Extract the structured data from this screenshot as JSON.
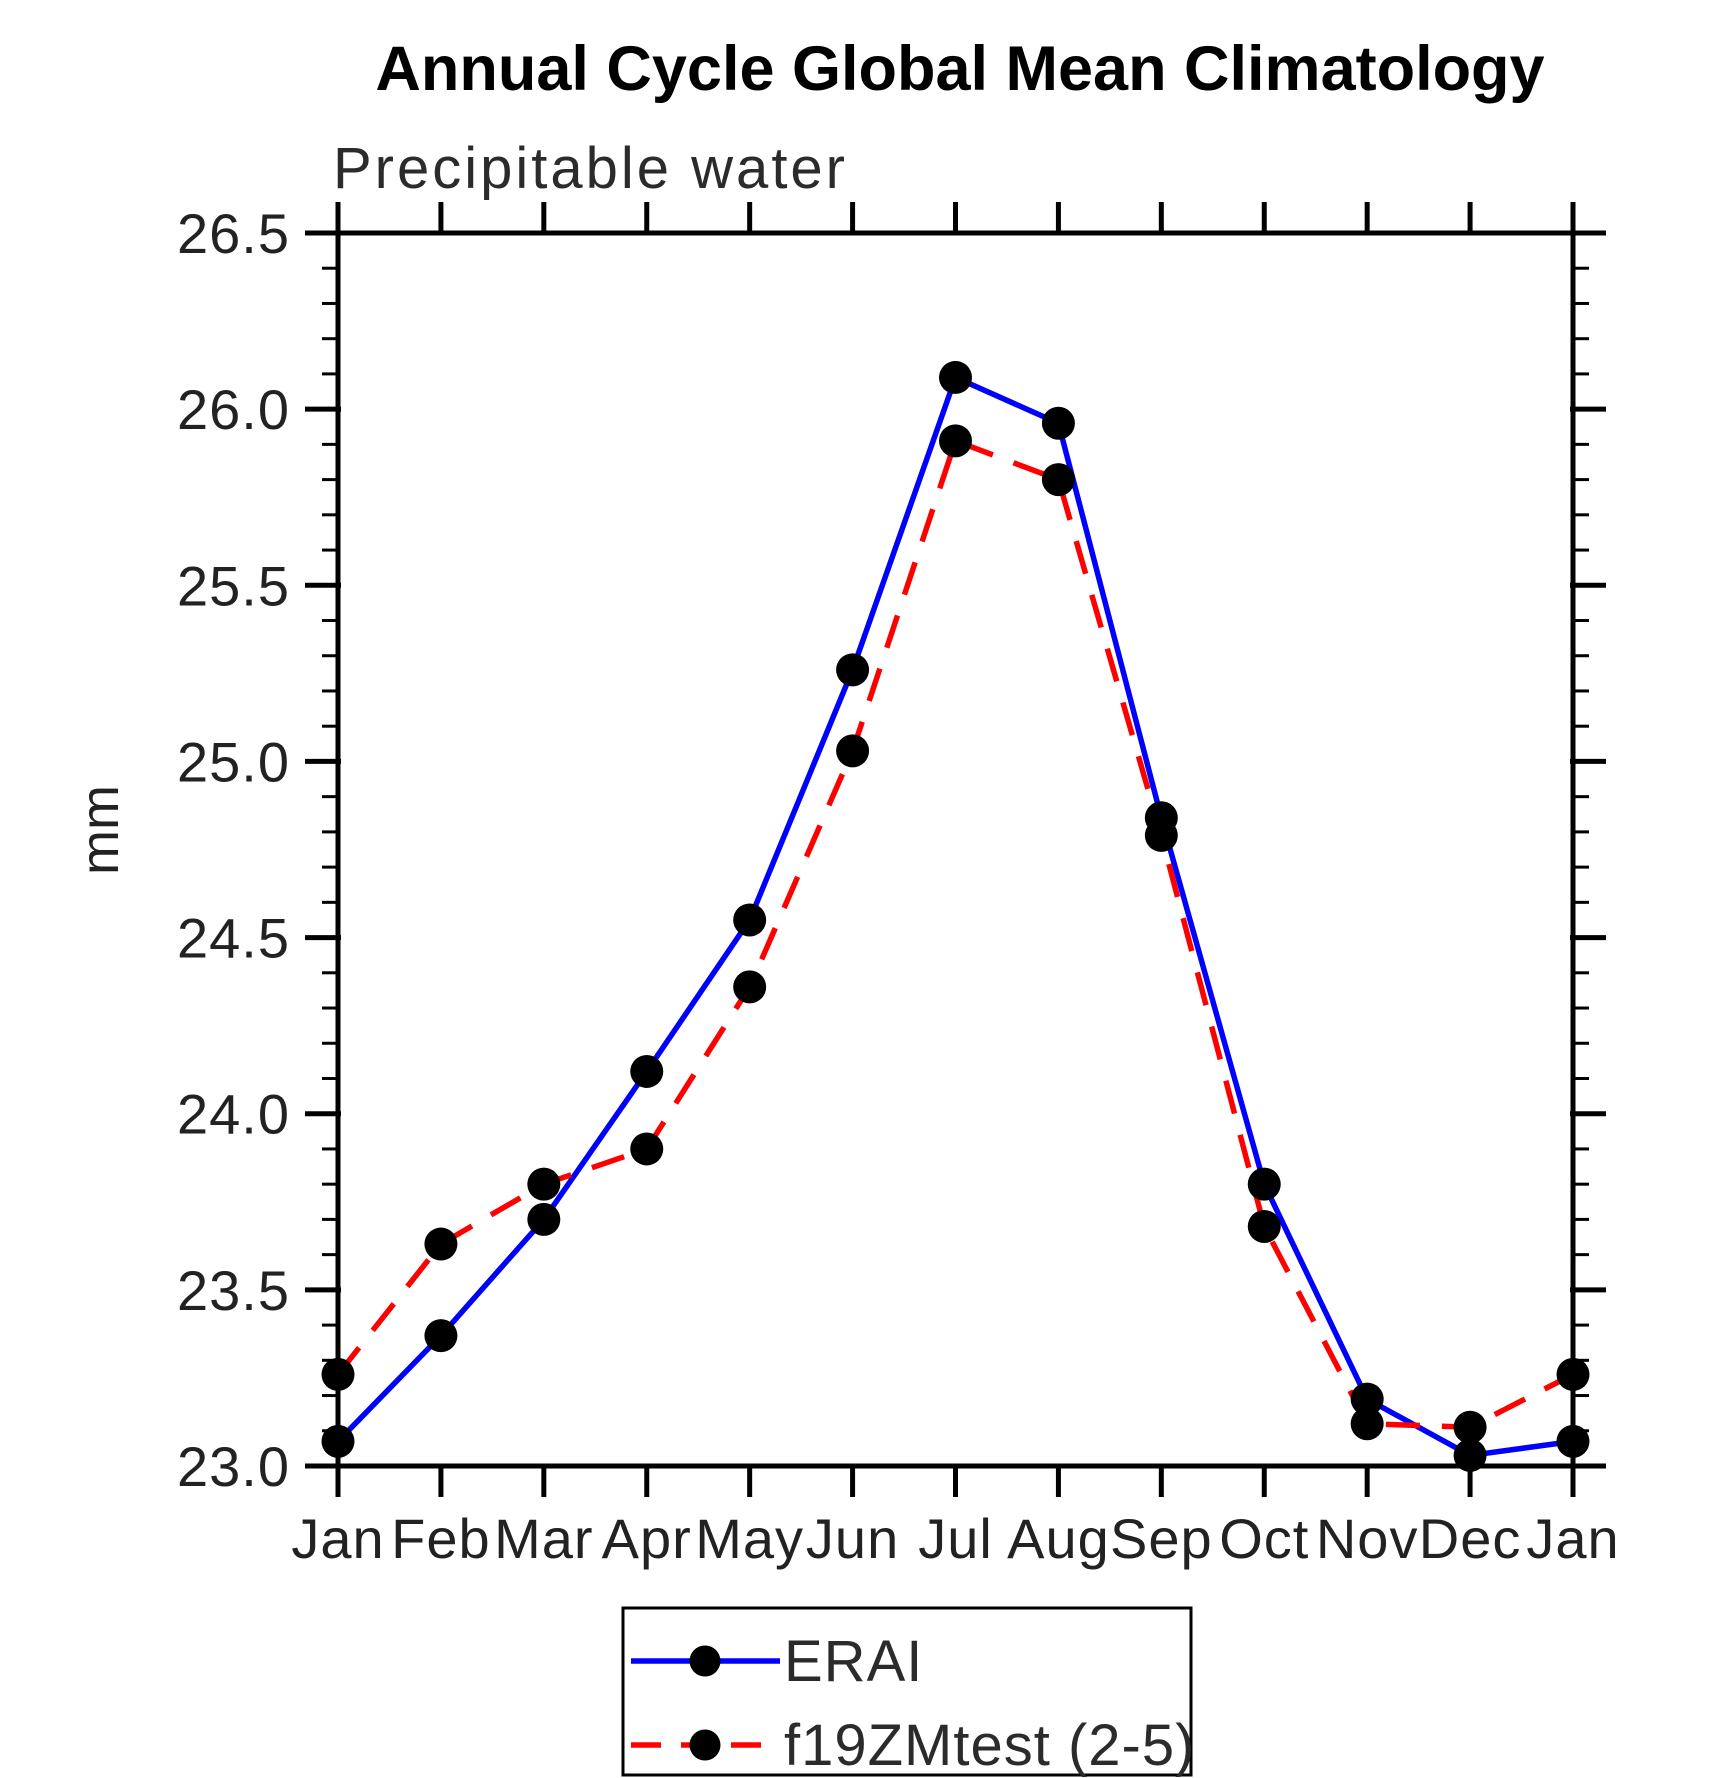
{
  "page": {
    "background": "#ffffff"
  },
  "chart_data": {
    "type": "line",
    "title": "Annual Cycle Global Mean Climatology",
    "subtitle": "Precipitable water",
    "xlabel": "",
    "ylabel": "mm",
    "categories": [
      "Jan",
      "Feb",
      "Mar",
      "Apr",
      "May",
      "Jun",
      "Jul",
      "Aug",
      "Sep",
      "Oct",
      "Nov",
      "Dec",
      "Jan"
    ],
    "ylim": [
      23.0,
      26.5
    ],
    "y_major_tick_step": 0.5,
    "y_minor_tick_step": 0.1,
    "y_tick_labels": [
      "23.0",
      "23.5",
      "24.0",
      "24.5",
      "25.0",
      "25.5",
      "26.0",
      "26.5"
    ],
    "grid": "off",
    "legend_position": "bottom-center-boxed",
    "marker_color": "#000000",
    "marker_shape": "filled-circle",
    "series": [
      {
        "name": "ERAI",
        "color": "#0000ff",
        "style": "solid",
        "values": [
          23.07,
          23.37,
          23.7,
          24.12,
          24.55,
          25.26,
          26.09,
          25.96,
          24.84,
          23.8,
          23.19,
          23.03,
          23.07
        ]
      },
      {
        "name": "f19ZMtest (2-5)",
        "color": "#ff0000",
        "style": "dashed",
        "values": [
          23.26,
          23.63,
          23.8,
          23.9,
          24.36,
          25.03,
          25.91,
          25.8,
          24.79,
          23.68,
          23.12,
          23.11,
          23.26
        ]
      }
    ]
  }
}
